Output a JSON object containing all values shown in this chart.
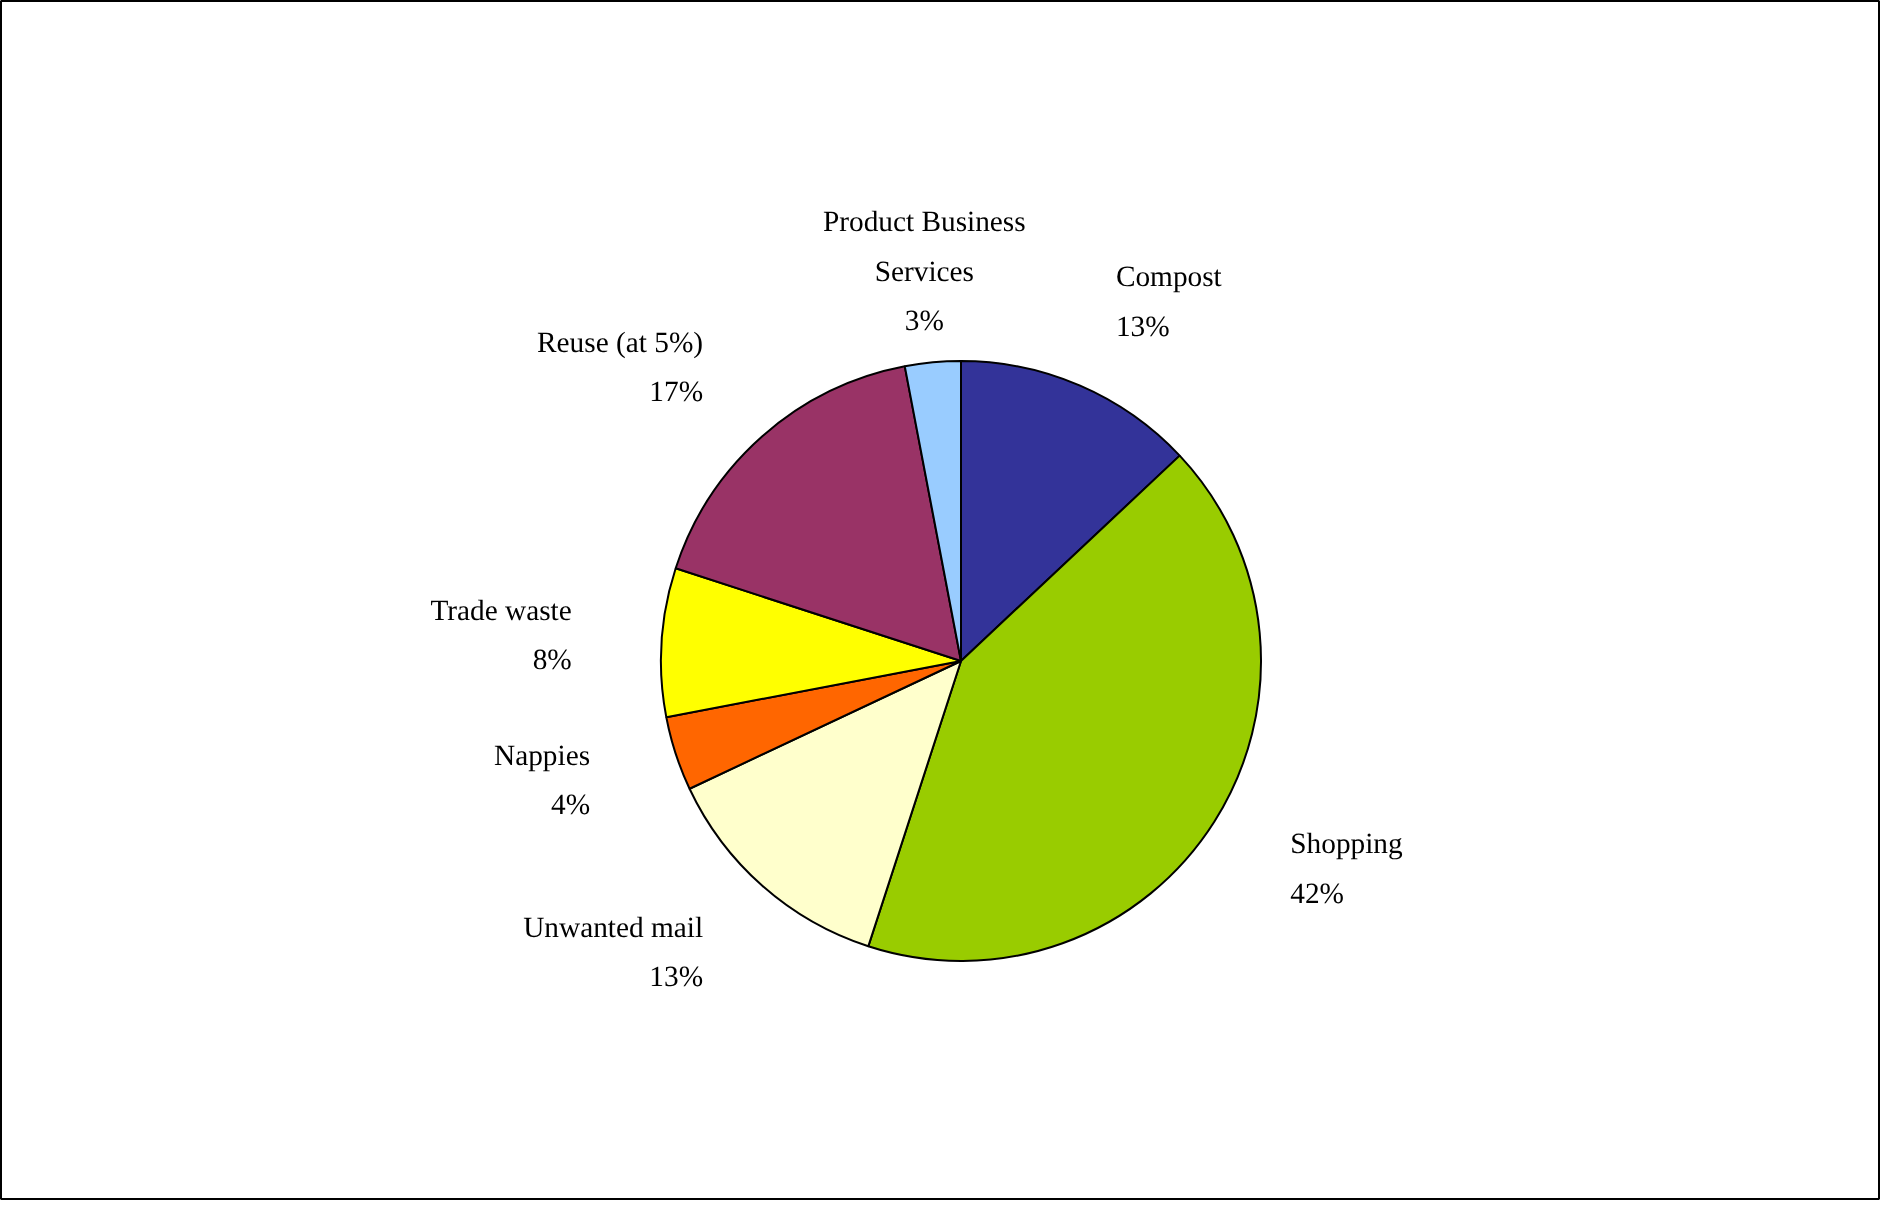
{
  "chart_data": {
    "type": "pie",
    "categories": [
      "Compost",
      "Shopping",
      "Unwanted mail",
      "Nappies",
      "Trade waste",
      "Reuse (at 5%)",
      "Product Business Services"
    ],
    "values": [
      13,
      42,
      13,
      4,
      8,
      17,
      3
    ],
    "colors": [
      "#333399",
      "#99cc00",
      "#ffffcc",
      "#ff6600",
      "#ffff00",
      "#993366",
      "#99ccff"
    ],
    "value_labels": [
      "13%",
      "42%",
      "13%",
      "4%",
      "8%",
      "17%",
      "3%"
    ]
  }
}
